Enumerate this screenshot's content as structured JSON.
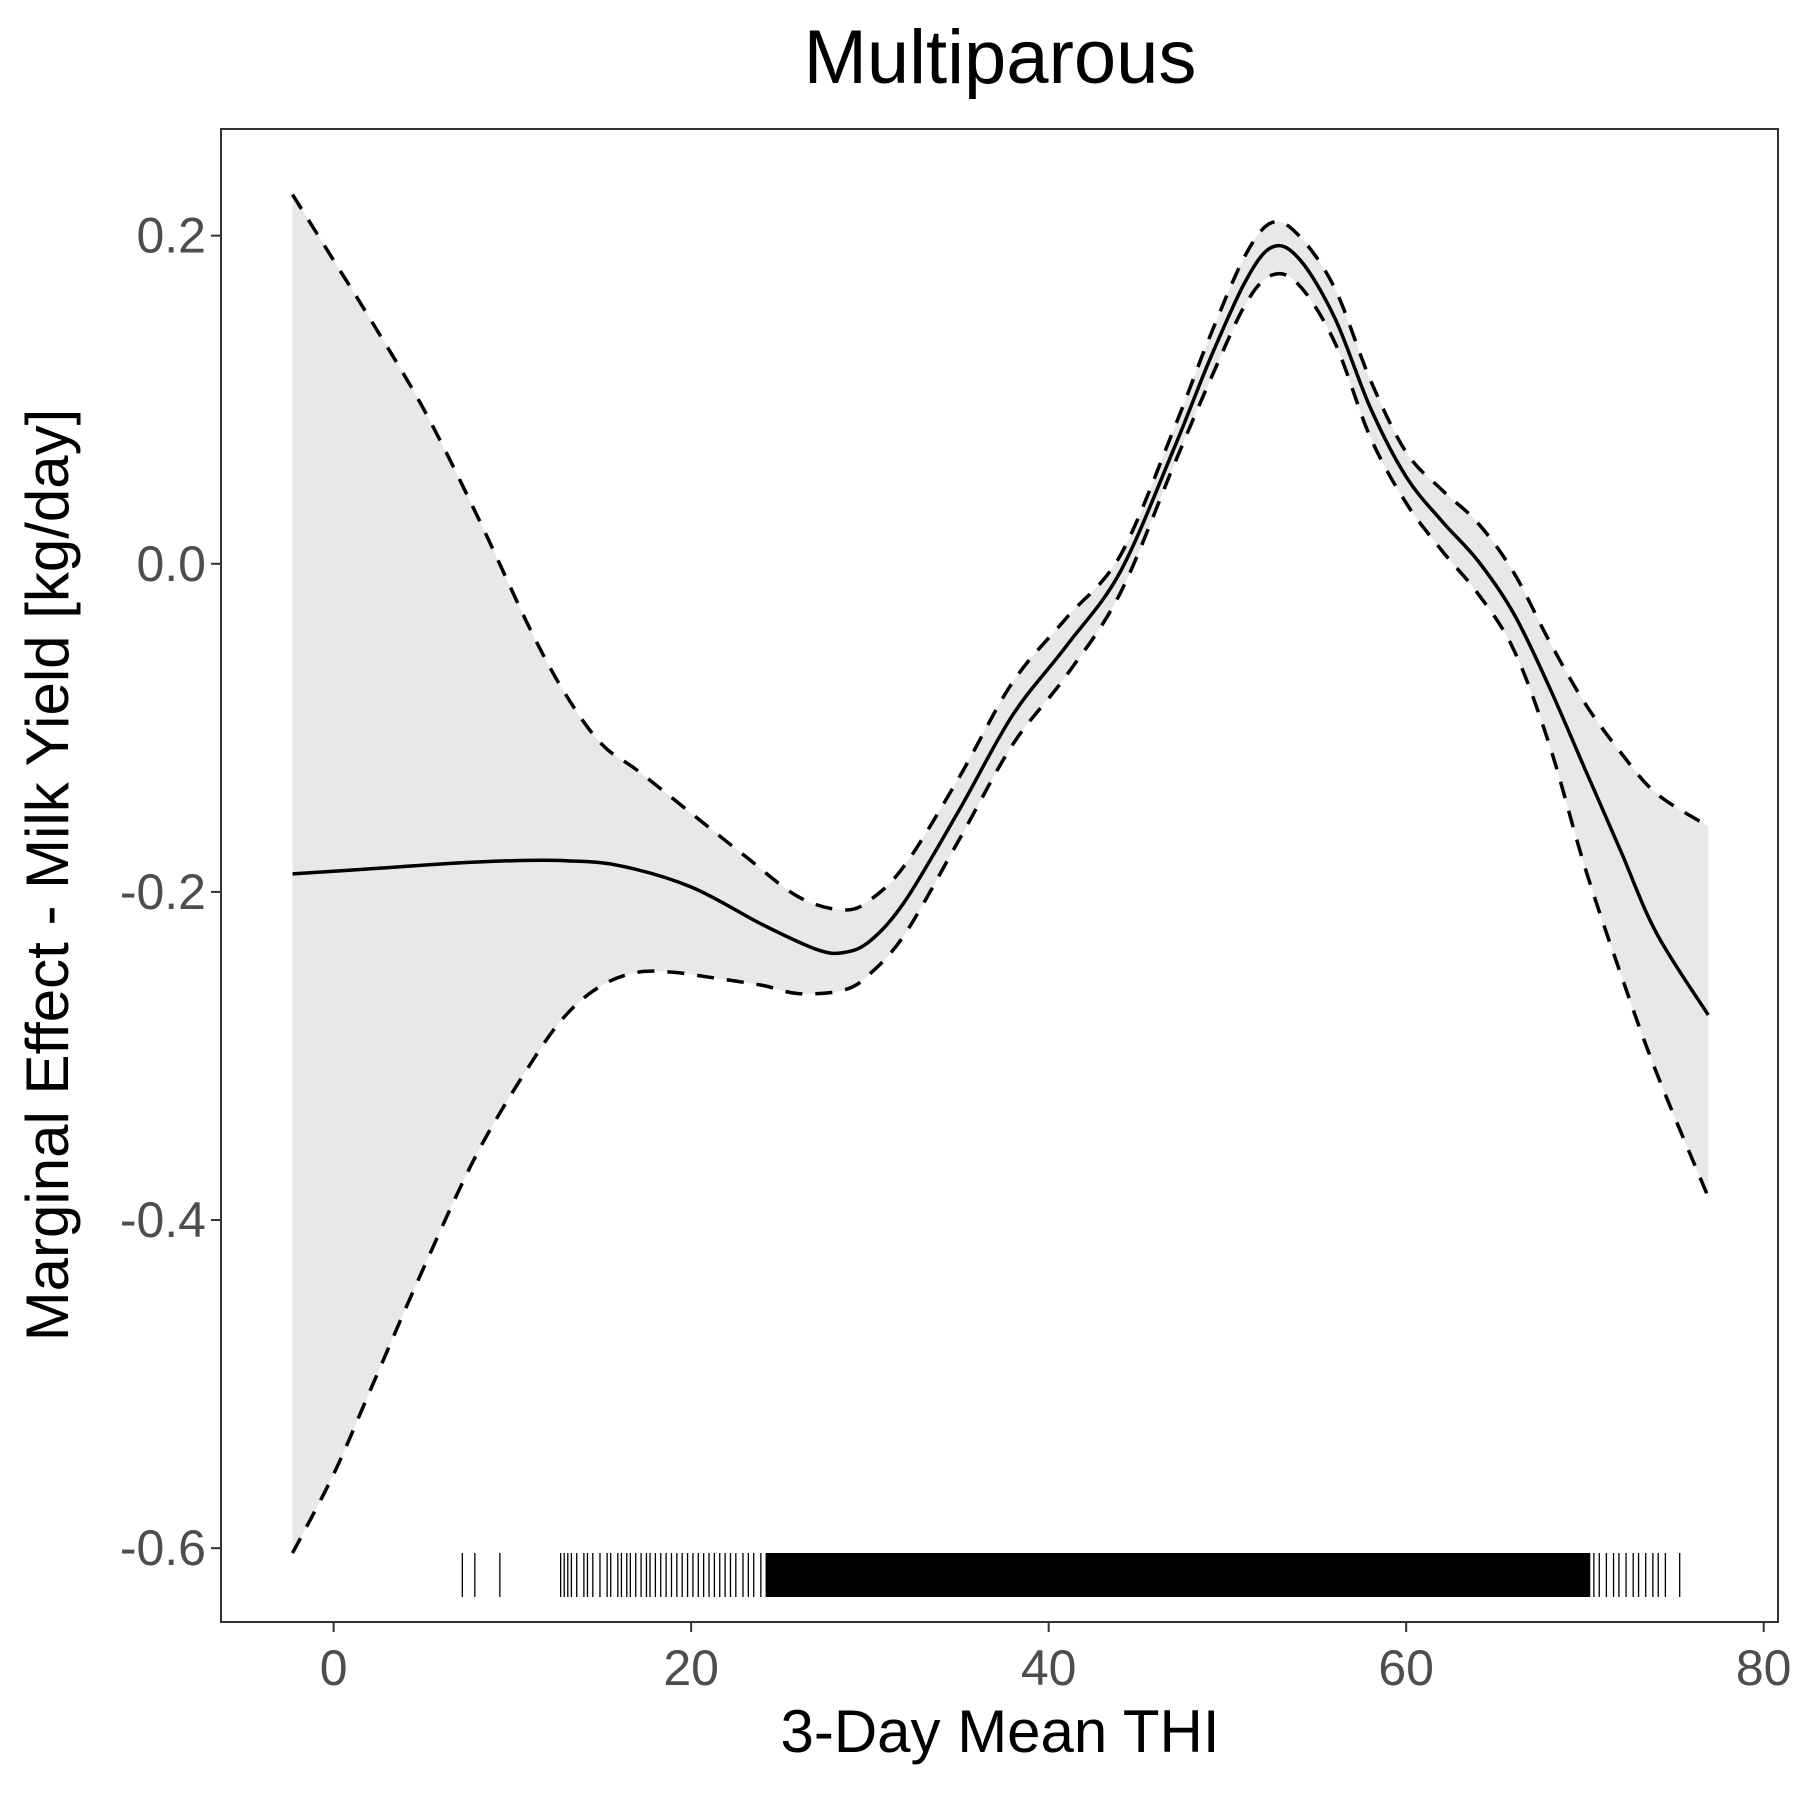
{
  "chart_data": {
    "type": "line",
    "title": "Multiparous",
    "xlabel": "3-Day Mean THI",
    "ylabel": "Marginal Effect - Milk Yield [kg/day]",
    "xlim": [
      -6.3,
      80.8
    ],
    "ylim": [
      -0.645,
      0.265
    ],
    "x_ticks": [
      0,
      20,
      40,
      60,
      80
    ],
    "x_tick_labels": [
      "0",
      "20",
      "40",
      "60",
      "80"
    ],
    "y_ticks": [
      0.2,
      0.0,
      -0.2,
      -0.4,
      -0.6
    ],
    "y_tick_labels": [
      "0.2",
      "0.0",
      "-0.2",
      "-0.4",
      "-0.6"
    ],
    "grid": false,
    "series": [
      {
        "role": "estimate",
        "style": "solid",
        "x": [
          -2.3,
          2,
          6,
          10,
          13,
          16,
          20,
          24,
          27,
          28.5,
          30,
          32,
          35,
          38,
          41,
          44,
          47,
          49,
          51,
          52.5,
          54,
          56,
          58,
          60,
          62,
          64,
          66,
          68,
          70,
          72,
          74,
          76.9
        ],
        "y": [
          -0.189,
          -0.186,
          -0.183,
          -0.181,
          -0.181,
          -0.184,
          -0.197,
          -0.22,
          -0.235,
          -0.237,
          -0.23,
          -0.205,
          -0.15,
          -0.092,
          -0.05,
          -0.005,
          0.07,
          0.124,
          0.172,
          0.193,
          0.186,
          0.15,
          0.095,
          0.053,
          0.026,
          0.002,
          -0.03,
          -0.075,
          -0.125,
          -0.175,
          -0.225,
          -0.275
        ]
      },
      {
        "role": "upper_ci",
        "style": "dashed",
        "x": [
          -2.3,
          0,
          2,
          5,
          8,
          11,
          13,
          15,
          17,
          20,
          23,
          26,
          28.5,
          30,
          32,
          35,
          38,
          41,
          44,
          47,
          49,
          51,
          52.5,
          54,
          56,
          58,
          60,
          62,
          64,
          66,
          68,
          70,
          72,
          74,
          76.9
        ],
        "y": [
          0.225,
          0.185,
          0.15,
          0.095,
          0.03,
          -0.04,
          -0.08,
          -0.11,
          -0.126,
          -0.152,
          -0.178,
          -0.203,
          -0.211,
          -0.205,
          -0.183,
          -0.13,
          -0.072,
          -0.033,
          0.005,
          0.082,
          0.138,
          0.188,
          0.208,
          0.2,
          0.168,
          0.112,
          0.068,
          0.045,
          0.025,
          -0.005,
          -0.047,
          -0.085,
          -0.115,
          -0.14,
          -0.16
        ]
      },
      {
        "role": "lower_ci",
        "style": "dashed",
        "x": [
          -2.3,
          0,
          2,
          5,
          8,
          11,
          13,
          15,
          17,
          19,
          21,
          24,
          26,
          28.5,
          30,
          32,
          35,
          38,
          41,
          44,
          47,
          49,
          51,
          52.5,
          54,
          56,
          58,
          60,
          62,
          64,
          66,
          68,
          70,
          72,
          74,
          76.9
        ],
        "y": [
          -0.603,
          -0.555,
          -0.505,
          -0.43,
          -0.36,
          -0.305,
          -0.275,
          -0.257,
          -0.249,
          -0.249,
          -0.252,
          -0.257,
          -0.262,
          -0.26,
          -0.25,
          -0.225,
          -0.168,
          -0.11,
          -0.068,
          -0.018,
          0.06,
          0.111,
          0.158,
          0.176,
          0.17,
          0.135,
          0.077,
          0.037,
          0.008,
          -0.018,
          -0.052,
          -0.11,
          -0.185,
          -0.25,
          -0.31,
          -0.386
        ]
      }
    ],
    "ribbon": {
      "fill": "#e8e8e8",
      "between": [
        "lower_ci",
        "upper_ci"
      ]
    },
    "rug": {
      "sparse_x": [
        7.2,
        7.9,
        9.3,
        12.7,
        12.9,
        13.1,
        13.3,
        13.6,
        14.0,
        14.2,
        14.5,
        14.9,
        15.3,
        15.5,
        15.9,
        16.1,
        16.4,
        16.6,
        16.9,
        17.2,
        17.5,
        17.7,
        18.0,
        18.3,
        18.6,
        18.9,
        19.2,
        19.5,
        19.8,
        20.1,
        20.4,
        20.7,
        21.0,
        21.3,
        21.6,
        21.9,
        22.2,
        22.5,
        22.9,
        23.2,
        23.5,
        23.9,
        24.2,
        70.5,
        70.8,
        71.2,
        71.6,
        71.9,
        72.3,
        72.7,
        73.0,
        73.4,
        73.8,
        74.1,
        74.5,
        75.3
      ],
      "dense_range": [
        24.2,
        70.3
      ]
    },
    "colors": {
      "line": "#000000",
      "ribbon": "#e8e8e8",
      "panel_border": "#333333",
      "tick_label": "#4d4d4d"
    }
  }
}
